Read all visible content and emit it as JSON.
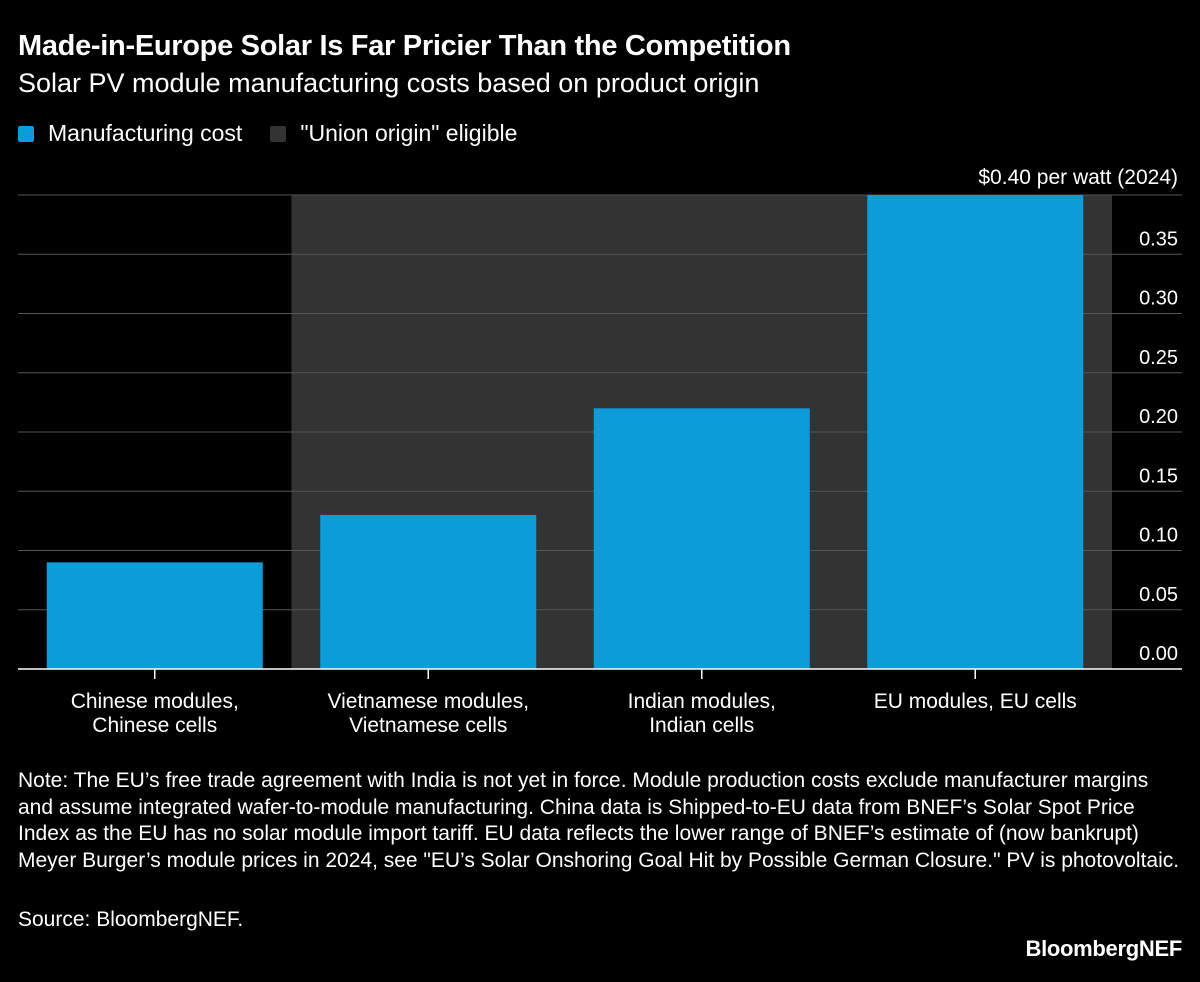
{
  "colors": {
    "background": "#000000",
    "bar": "#0C9CDA",
    "shade": "#333333",
    "grid": "#555555",
    "axis": "#ffffff"
  },
  "header": {
    "title": "Made-in-Europe Solar Is Far Pricier Than the Competition",
    "subtitle": "Solar PV module manufacturing costs based on product origin"
  },
  "legend": [
    {
      "label": "Manufacturing cost",
      "color": "#0C9CDA"
    },
    {
      "label": "\"Union origin\" eligible",
      "color": "#333333"
    }
  ],
  "chart_data": {
    "type": "bar",
    "title": "Made-in-Europe Solar Is Far Pricier Than the Competition",
    "categories": [
      [
        "Chinese modules,",
        "Chinese cells"
      ],
      [
        "Vietnamese modules,",
        "Vietnamese cells"
      ],
      [
        "Indian modules,",
        "Indian cells"
      ],
      [
        "EU modules, EU cells"
      ]
    ],
    "series": [
      {
        "name": "Manufacturing cost",
        "values": [
          0.09,
          0.13,
          0.22,
          0.4
        ]
      }
    ],
    "union_origin_eligible": [
      false,
      true,
      true,
      true
    ],
    "ylim": [
      0,
      0.4
    ],
    "yticks": [
      "0.00",
      "0.05",
      "0.10",
      "0.15",
      "0.20",
      "0.25",
      "0.30",
      "0.35"
    ],
    "top_label": "$0.40 per watt (2024)",
    "ylabel": "$ per watt",
    "xlabel": "",
    "grid": true,
    "axis_side": "right"
  },
  "footer": {
    "note": "Note: The EU’s free trade agreement with India is not yet in force. Module production costs exclude manufacturer margins and assume integrated wafer-to-module manufacturing. China data is Shipped-to-EU data from BNEF’s Solar Spot Price Index as the EU has no solar module import tariff. EU data reflects the lower range of BNEF’s estimate of (now bankrupt) Meyer Burger’s module prices in 2024, see \"EU’s Solar Onshoring Goal Hit by Possible German Closure.\" PV is photovoltaic.",
    "source": "Source: BloombergNEF.",
    "brand": "BloombergNEF"
  }
}
